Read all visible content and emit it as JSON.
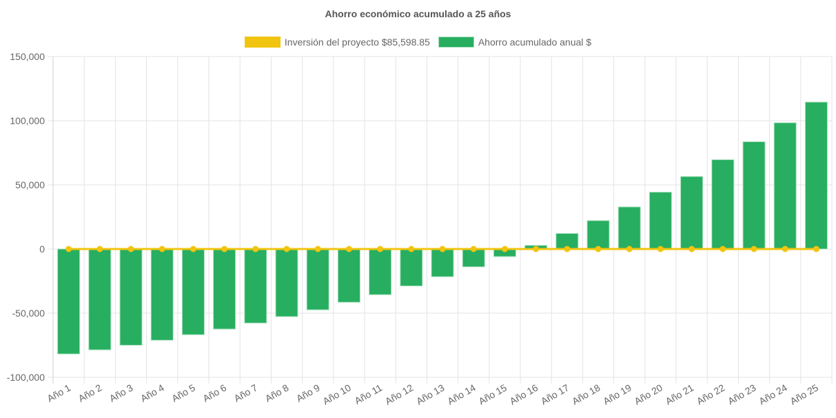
{
  "chart_data": {
    "type": "bar",
    "title": "Ahorro económico acumulado a 25 años",
    "xlabel": "",
    "ylabel": "",
    "ylim": [
      -100000,
      150000
    ],
    "yticks": [
      150000,
      100000,
      50000,
      0,
      -50000,
      -100000
    ],
    "ytick_labels": [
      "150,000",
      "100,000",
      "50,000",
      "0",
      "-50,000",
      "-100,000"
    ],
    "grid": true,
    "legend_position": "top-center",
    "categories": [
      "Año 1",
      "Año 2",
      "Año 3",
      "Año 4",
      "Año 5",
      "Año 6",
      "Año 7",
      "Año 8",
      "Año 9",
      "Año 10",
      "Año 11",
      "Año 12",
      "Año 13",
      "Año 14",
      "Año 15",
      "Año 16",
      "Año 17",
      "Año 18",
      "Año 19",
      "Año 20",
      "Año 21",
      "Año 22",
      "Año 23",
      "Año 24",
      "Año 25"
    ],
    "series": [
      {
        "name": "Inversión del proyecto $85,598.85",
        "type": "line",
        "color": "#F1C40F",
        "values": [
          0,
          0,
          0,
          0,
          0,
          0,
          0,
          0,
          0,
          0,
          0,
          0,
          0,
          0,
          0,
          0,
          0,
          0,
          0,
          0,
          0,
          0,
          0,
          0,
          0
        ]
      },
      {
        "name": "Ahorro acumulado anual $",
        "type": "bar",
        "color": "#27AE60",
        "values": [
          -81800,
          -78600,
          -75000,
          -71100,
          -66800,
          -62400,
          -57700,
          -52700,
          -47400,
          -41500,
          -35600,
          -28800,
          -21600,
          -13900,
          -5900,
          2800,
          12100,
          22100,
          32800,
          44300,
          56500,
          69600,
          83600,
          98400,
          114500
        ]
      }
    ]
  }
}
